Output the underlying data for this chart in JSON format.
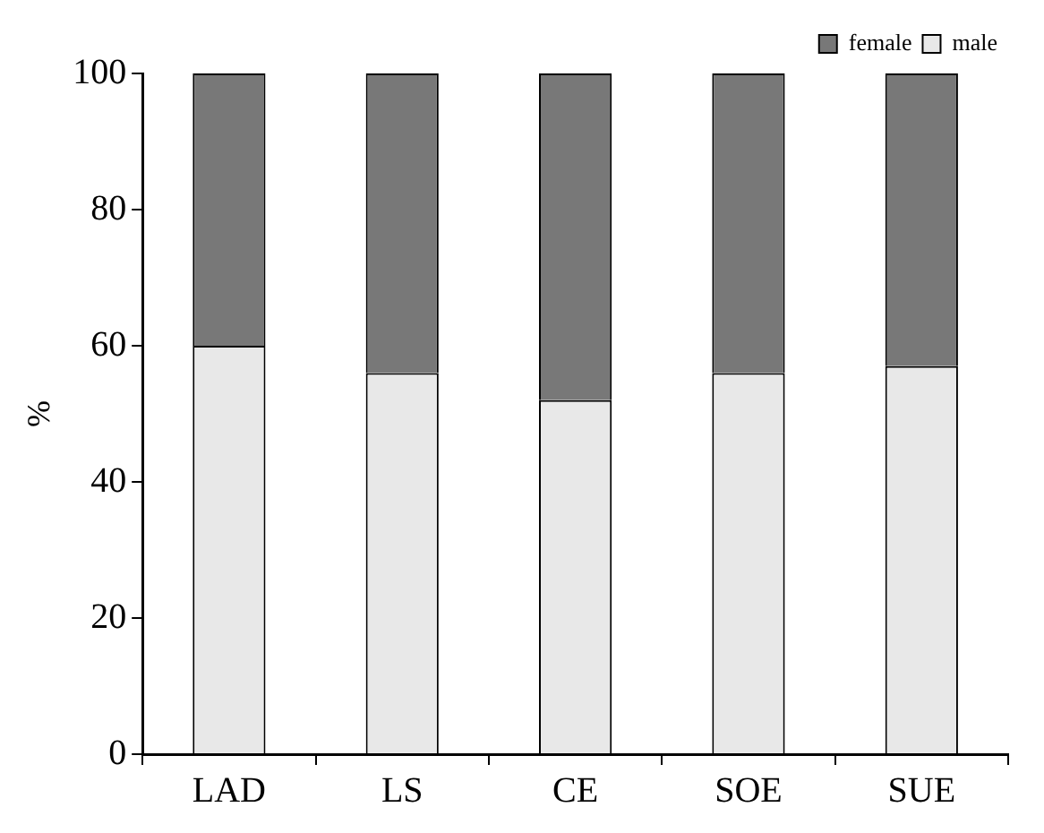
{
  "chart_data": {
    "type": "bar",
    "stacked": true,
    "ylabel": "%",
    "categories": [
      "LAD",
      "LS",
      "CE",
      "SOE",
      "SUE"
    ],
    "series": [
      {
        "name": "male",
        "color": "#e8e8e8",
        "values": [
          60,
          56,
          52,
          56,
          57
        ]
      },
      {
        "name": "female",
        "color": "#787878",
        "values": [
          40,
          44,
          48,
          44,
          43
        ]
      }
    ],
    "ylim": [
      0,
      100
    ],
    "yticks": [
      0,
      20,
      40,
      60,
      80,
      100
    ],
    "grid": false,
    "legend": "top right"
  }
}
